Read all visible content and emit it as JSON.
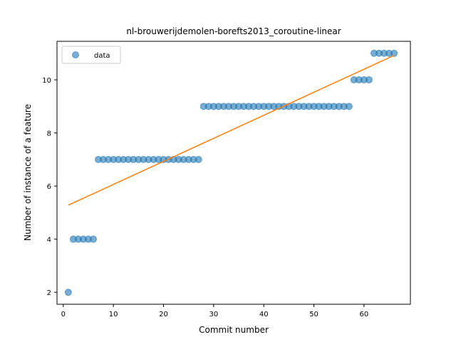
{
  "chart_data": {
    "type": "scatter",
    "title": "nl-brouwerijdemolen-borefts2013_coroutine-linear",
    "xlabel": "Commit number",
    "ylabel": "Number of instance of a feature",
    "xlim": [
      -1.25,
      69.25
    ],
    "ylim": [
      1.55,
      11.45
    ],
    "xticks": [
      0,
      10,
      20,
      30,
      40,
      50,
      60
    ],
    "yticks": [
      2,
      4,
      6,
      8,
      10
    ],
    "grid": false,
    "legend_position": "top-left",
    "series": [
      {
        "name": "data",
        "kind": "scatter",
        "color": "#1f77b4",
        "x": [
          1,
          2,
          3,
          4,
          5,
          6,
          7,
          8,
          9,
          10,
          11,
          12,
          13,
          14,
          15,
          16,
          17,
          18,
          19,
          20,
          21,
          22,
          23,
          24,
          25,
          26,
          27,
          28,
          29,
          30,
          31,
          32,
          33,
          34,
          35,
          36,
          37,
          38,
          39,
          40,
          41,
          42,
          43,
          44,
          45,
          46,
          47,
          48,
          49,
          50,
          51,
          52,
          53,
          54,
          55,
          56,
          57,
          58,
          59,
          60,
          61,
          62,
          63,
          64,
          65,
          66
        ],
        "y": [
          2,
          4,
          4,
          4,
          4,
          4,
          7,
          7,
          7,
          7,
          7,
          7,
          7,
          7,
          7,
          7,
          7,
          7,
          7,
          7,
          7,
          7,
          7,
          7,
          7,
          7,
          7,
          9,
          9,
          9,
          9,
          9,
          9,
          9,
          9,
          9,
          9,
          9,
          9,
          9,
          9,
          9,
          9,
          9,
          9,
          9,
          9,
          9,
          9,
          9,
          9,
          9,
          9,
          9,
          9,
          9,
          9,
          10,
          10,
          10,
          10,
          11,
          11,
          11,
          11,
          11
        ]
      },
      {
        "kind": "line",
        "color": "#ff7f0e",
        "x": [
          1,
          66
        ],
        "y": [
          5.28,
          10.92
        ]
      }
    ]
  }
}
